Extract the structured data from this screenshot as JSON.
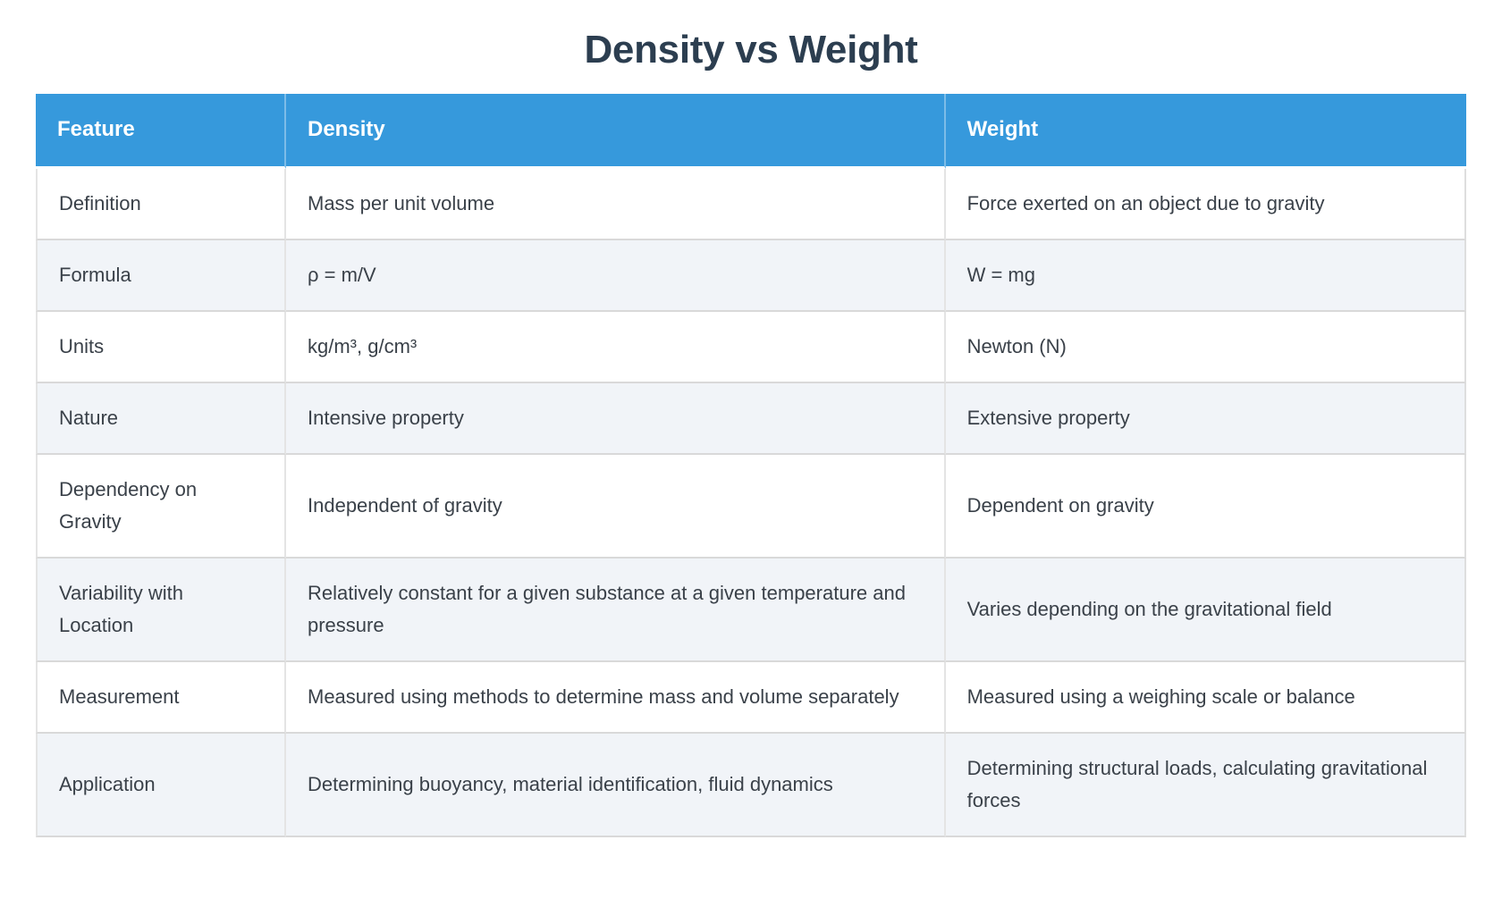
{
  "chart_data": {
    "type": "table",
    "title": "Density vs Weight",
    "columns": [
      "Feature",
      "Density",
      "Weight"
    ],
    "rows": [
      {
        "feature": "Definition",
        "density": "Mass per unit volume",
        "weight": "Force exerted on an object due to gravity"
      },
      {
        "feature": "Formula",
        "density": "ρ = m/V",
        "weight": "W = mg"
      },
      {
        "feature": "Units",
        "density": "kg/m³, g/cm³",
        "weight": "Newton (N)"
      },
      {
        "feature": "Nature",
        "density": "Intensive property",
        "weight": "Extensive property"
      },
      {
        "feature": "Dependency on Gravity",
        "density": "Independent of gravity",
        "weight": "Dependent on gravity"
      },
      {
        "feature": "Variability with Location",
        "density": "Relatively constant for a given substance at a given temperature and pressure",
        "weight": "Varies depending on the gravitational field"
      },
      {
        "feature": "Measurement",
        "density": "Measured using methods to determine mass and volume separately",
        "weight": "Measured using a weighing scale or balance"
      },
      {
        "feature": "Application",
        "density": "Determining buoyancy, material identification, fluid dynamics",
        "weight": "Determining structural loads, calculating gravitational forces"
      }
    ]
  },
  "colors": {
    "title_text": "#2c3e50",
    "header_background": "#3699dc",
    "header_text": "#ffffff",
    "row_odd_background": "#ffffff",
    "row_even_background": "#f1f4f8",
    "body_text": "#3a4149",
    "row_border": "#d9d9d9"
  }
}
